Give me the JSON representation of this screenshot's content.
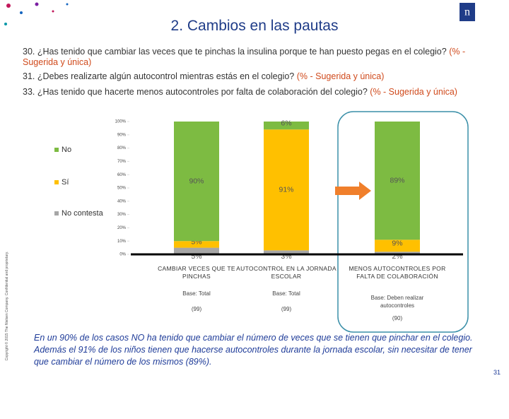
{
  "header": {
    "title": "2. Cambios en las pautas",
    "logo": "n"
  },
  "questions": [
    {
      "text": "30. ¿Has tenido que cambiar las veces que te pinchas la insulina porque te han puesto pegas en el colegio?",
      "note": "(% - Sugerida y única)"
    },
    {
      "text": "31. ¿Debes realizarte algún autocontrol mientras estás en el colegio?",
      "note": "(% - Sugerida y única)"
    },
    {
      "text": "33. ¿Has tenido que hacerte menos autocontroles por falta de colaboración del colegio?",
      "note": "(% - Sugerida y única)"
    }
  ],
  "chart_data": {
    "type": "stacked_bar",
    "categories": [
      "CAMBIAR VECES QUE TE PINCHAS",
      "AUTOCONTROL EN LA JORNADA ESCOLAR",
      "MENOS AUTOCONTROLES POR FALTA DE COLABORACIÓN"
    ],
    "series": [
      {
        "name": "No",
        "color": "#7dbb42",
        "values": [
          90,
          6,
          89
        ],
        "value_labels": [
          "90%",
          "6%",
          "89%"
        ]
      },
      {
        "name": "Sí",
        "color": "#ffc000",
        "values": [
          5,
          91,
          9
        ],
        "value_labels": [
          "5%",
          "91%",
          "9%"
        ]
      },
      {
        "name": "No contesta",
        "color": "#a6a6a6",
        "values": [
          5,
          3,
          2
        ],
        "value_labels": [
          "5%",
          "3%",
          "2%"
        ]
      }
    ],
    "ylim": [
      0,
      100
    ],
    "yticks": [
      {
        "value": 0,
        "label": "0%"
      },
      {
        "value": 10,
        "label": "10%"
      },
      {
        "value": 20,
        "label": "20%"
      },
      {
        "value": 30,
        "label": "30%"
      },
      {
        "value": 40,
        "label": "40%"
      },
      {
        "value": 50,
        "label": "50%"
      },
      {
        "value": 60,
        "label": "60%"
      },
      {
        "value": 70,
        "label": "70%"
      },
      {
        "value": 80,
        "label": "80%"
      },
      {
        "value": 90,
        "label": "90%"
      },
      {
        "value": 100,
        "label": "100%"
      }
    ],
    "bases": [
      {
        "label": "Base: Total",
        "n": "(99)"
      },
      {
        "label": "Base: Total",
        "n": "(99)"
      },
      {
        "label": "Base: Deben realizar autocontroles",
        "n": "(90)"
      }
    ]
  },
  "summary": "En un 90% de los casos NO ha tenido que cambiar el número de veces que se tienen que pinchar en el colegio. Además el 91% de los niños tienen que hacerse autocontroles durante la jornada escolar, sin necesitar de tener que cambiar el número de los mismos (89%).",
  "footer": {
    "page": "31",
    "copyright": "Copyright © 2015 The Nielsen Company. Confidential and proprietary."
  }
}
